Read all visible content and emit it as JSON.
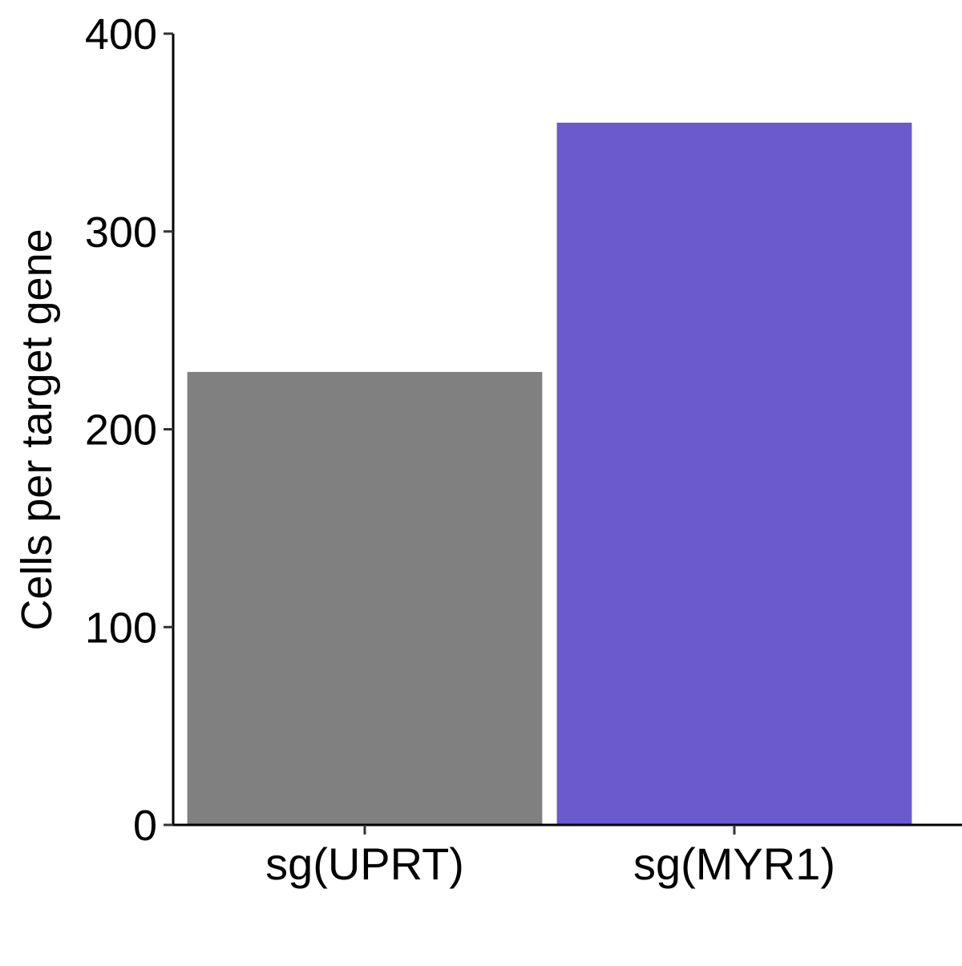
{
  "chart_data": {
    "type": "bar",
    "categories": [
      "sg(UPRT)",
      "sg(MYR1)"
    ],
    "values": [
      229,
      355
    ],
    "colors": [
      "#808080",
      "#6A5ACD"
    ],
    "xlabel": "",
    "ylabel": "Cells per target gene",
    "ylim": [
      0,
      400
    ],
    "yticks": [
      0,
      100,
      200,
      300,
      400
    ],
    "grid": false,
    "legend": "none"
  }
}
